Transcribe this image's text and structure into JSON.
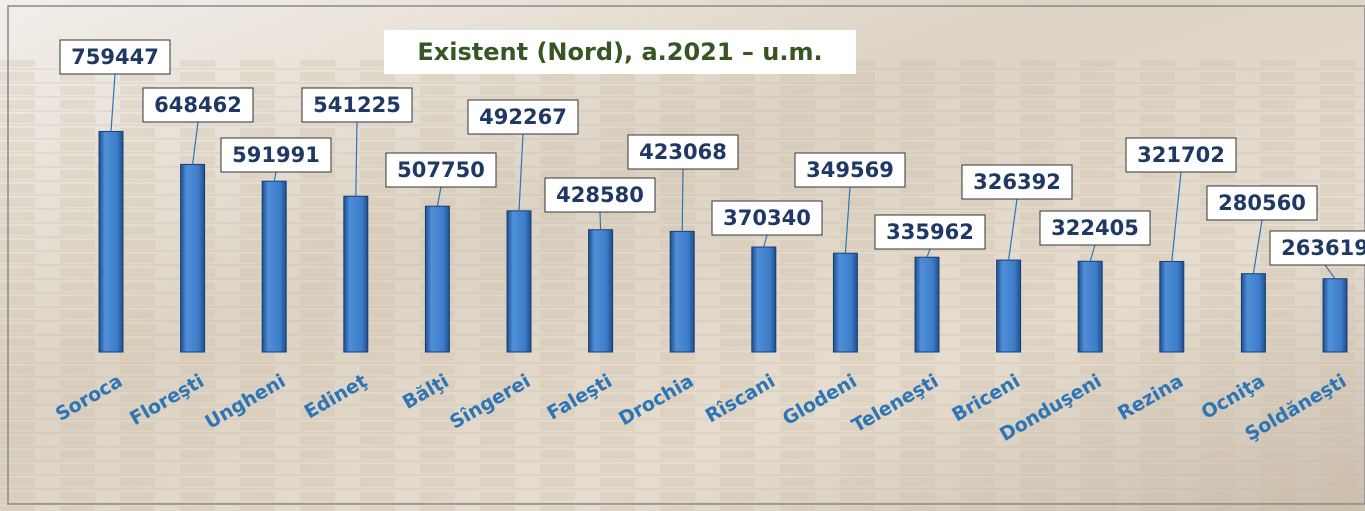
{
  "chart_data": {
    "type": "bar",
    "title": "Existent (Nord), a.2021 – u.m.",
    "categories": [
      "Soroca",
      "Floreşti",
      "Ungheni",
      "Edineţ",
      "Bălţi",
      "Sîngerei",
      "Faleşti",
      "Drochia",
      "Rîscani",
      "Glodeni",
      "Teleneşti",
      "Briceni",
      "Donduşeni",
      "Rezina",
      "Ocniţa",
      "Şoldăneşti"
    ],
    "values": [
      759447,
      648462,
      591991,
      541225,
      507750,
      492267,
      428580,
      423068,
      370340,
      349569,
      335962,
      326392,
      322405,
      321702,
      280560,
      263619
    ],
    "color": "#3d7cc9"
  }
}
